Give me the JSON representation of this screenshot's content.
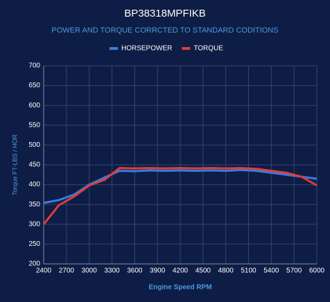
{
  "chart_data": {
    "type": "line",
    "title": "BP38318MPFIKB",
    "subtitle": "POWER AND TORQUE CORRCTED TO STANDARD CODITIONS",
    "x_label": "Engine Speed RPM",
    "y_label": "Torque FT-LBS / HOR",
    "x": [
      2400,
      2600,
      2800,
      3000,
      3200,
      3400,
      3600,
      3800,
      4000,
      4200,
      4400,
      4600,
      4800,
      5000,
      5200,
      5400,
      5600,
      5800,
      6000
    ],
    "series": [
      {
        "name": "HORSEPOWER",
        "color": "#3b7ddd",
        "values": [
          354,
          361,
          375,
          400,
          418,
          435,
          434,
          436,
          435,
          436,
          435,
          436,
          435,
          437,
          435,
          430,
          425,
          420,
          415
        ]
      },
      {
        "name": "TORQUE",
        "color": "#e03c3c",
        "values": [
          300,
          348,
          370,
          398,
          412,
          442,
          441,
          442,
          441,
          442,
          441,
          442,
          441,
          442,
          440,
          435,
          430,
          420,
          398
        ]
      }
    ],
    "xlim": [
      2400,
      6000
    ],
    "xticks": [
      2400,
      2700,
      3000,
      3300,
      3600,
      3900,
      4200,
      4500,
      4800,
      5100,
      5400,
      5700,
      6000
    ],
    "ylim": [
      200,
      700
    ],
    "yticks": [
      200,
      250,
      300,
      350,
      400,
      450,
      500,
      550,
      600,
      650,
      700
    ],
    "grid": true,
    "legend": "top"
  }
}
